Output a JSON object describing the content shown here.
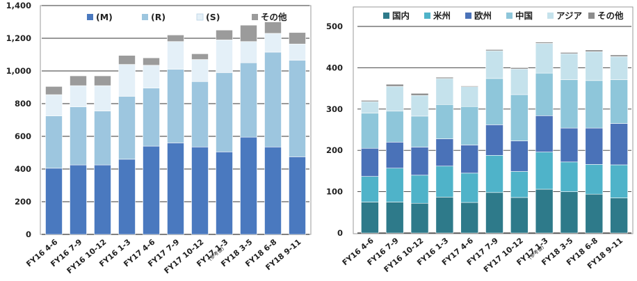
{
  "chart_data": [
    {
      "type": "bar",
      "stacked": true,
      "categories": [
        "FY16 4-6",
        "FY16 7-9",
        "FY16 10-12",
        "FY16 1-3",
        "FY17 4-6",
        "FY17 7-9",
        "FY17 10-12",
        "FY17 1-3",
        "FY18 3-5",
        "FY18 6-8",
        "FY18 9-11"
      ],
      "category_notes": [
        "",
        "",
        "",
        "",
        "",
        "",
        "",
        "(参考値)",
        "",
        "",
        ""
      ],
      "ylim": [
        0,
        1400
      ],
      "yticks": [
        0,
        200,
        400,
        600,
        800,
        1000,
        1200,
        1400
      ],
      "ytick_labels": [
        "0",
        "200",
        "400",
        "600",
        "800",
        "1,000",
        "1,200",
        "1,400"
      ],
      "grid": true,
      "legend_position": "top",
      "series": [
        {
          "name": "(M)",
          "color": "#4a79bf",
          "values": [
            405,
            425,
            425,
            460,
            540,
            560,
            535,
            505,
            595,
            535,
            475
          ]
        },
        {
          "name": "(R)",
          "color": "#9dc6df",
          "values": [
            320,
            355,
            330,
            385,
            355,
            450,
            400,
            485,
            455,
            580,
            590
          ]
        },
        {
          "name": "(S)",
          "color": "#e4f0f8",
          "values": [
            130,
            130,
            155,
            195,
            140,
            170,
            135,
            200,
            130,
            115,
            100
          ]
        },
        {
          "name": "その他",
          "color": "#9b9b9b",
          "values": [
            50,
            60,
            60,
            55,
            45,
            40,
            35,
            60,
            100,
            70,
            70
          ]
        }
      ]
    },
    {
      "type": "bar",
      "stacked": true,
      "categories": [
        "FY16 4-6",
        "FY16 7-9",
        "FY16 10-12",
        "FY16 1-3",
        "FY17 4-6",
        "FY17 7-9",
        "FY17 10-12",
        "FY17 1-3",
        "FY18 3-5",
        "FY18 6-8",
        "FY18 9-11"
      ],
      "category_notes": [
        "",
        "",
        "",
        "",
        "",
        "",
        "",
        "(参考値)",
        "",
        "",
        ""
      ],
      "ylim": [
        0,
        500
      ],
      "yticks": [
        0,
        100,
        200,
        300,
        400,
        500
      ],
      "ytick_labels": [
        "0",
        "100",
        "200",
        "300",
        "400",
        "500"
      ],
      "grid": true,
      "legend_position": "top",
      "series": [
        {
          "name": "国内",
          "color": "#2e7a8a",
          "values": [
            75,
            75,
            72,
            87,
            74,
            98,
            86,
            106,
            100,
            94,
            85
          ]
        },
        {
          "name": "米州",
          "color": "#4fb3c9",
          "values": [
            62,
            82,
            68,
            75,
            71,
            90,
            63,
            90,
            72,
            72,
            80
          ]
        },
        {
          "name": "欧州",
          "color": "#4a72b8",
          "values": [
            68,
            63,
            68,
            66,
            68,
            74,
            74,
            88,
            82,
            88,
            100
          ]
        },
        {
          "name": "中国",
          "color": "#8ec6da",
          "values": [
            85,
            75,
            75,
            83,
            93,
            112,
            112,
            103,
            117,
            115,
            106
          ]
        },
        {
          "name": "アジア",
          "color": "#c5e2ec",
          "values": [
            28,
            60,
            50,
            63,
            48,
            67,
            62,
            72,
            63,
            70,
            56
          ]
        },
        {
          "name": "その他",
          "color": "#8d8d8d",
          "values": [
            3,
            5,
            5,
            3,
            2,
            3,
            3,
            3,
            3,
            4,
            4
          ]
        }
      ]
    }
  ]
}
